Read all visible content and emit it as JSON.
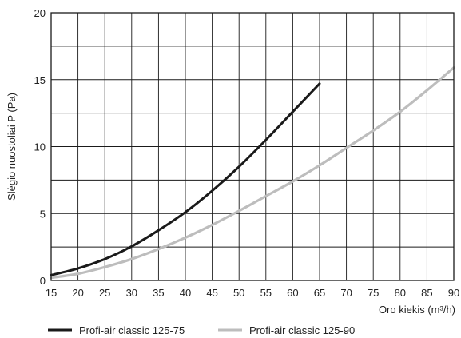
{
  "chart_data": {
    "type": "line",
    "title": "",
    "xlabel": "Oro kiekis (m³/h)",
    "ylabel": "Slėgio nuostoliai P (Pa)",
    "xlim": [
      15,
      90
    ],
    "ylim": [
      0,
      20
    ],
    "x_ticks": [
      15,
      20,
      25,
      30,
      35,
      40,
      45,
      50,
      55,
      60,
      65,
      70,
      75,
      80,
      85,
      90
    ],
    "y_ticks": [
      0,
      5,
      10,
      15,
      20
    ],
    "y_grid_step": 2.5,
    "grid": true,
    "legend_position": "bottom",
    "series": [
      {
        "name": "Profi-air classic 125-75",
        "color": "#1a1a1a",
        "points": [
          [
            15,
            0.4
          ],
          [
            20,
            0.9
          ],
          [
            25,
            1.6
          ],
          [
            30,
            2.55
          ],
          [
            35,
            3.75
          ],
          [
            40,
            5.1
          ],
          [
            45,
            6.7
          ],
          [
            50,
            8.5
          ],
          [
            55,
            10.5
          ],
          [
            60,
            12.6
          ],
          [
            65,
            14.7
          ]
        ]
      },
      {
        "name": "Profi-air classic 125-90",
        "color": "#bdbdbd",
        "points": [
          [
            15,
            0.2
          ],
          [
            20,
            0.5
          ],
          [
            25,
            1.0
          ],
          [
            30,
            1.6
          ],
          [
            35,
            2.35
          ],
          [
            40,
            3.2
          ],
          [
            45,
            4.15
          ],
          [
            50,
            5.2
          ],
          [
            55,
            6.3
          ],
          [
            60,
            7.4
          ],
          [
            65,
            8.6
          ],
          [
            70,
            9.9
          ],
          [
            75,
            11.2
          ],
          [
            80,
            12.6
          ],
          [
            85,
            14.2
          ],
          [
            90,
            15.9
          ]
        ]
      }
    ]
  }
}
